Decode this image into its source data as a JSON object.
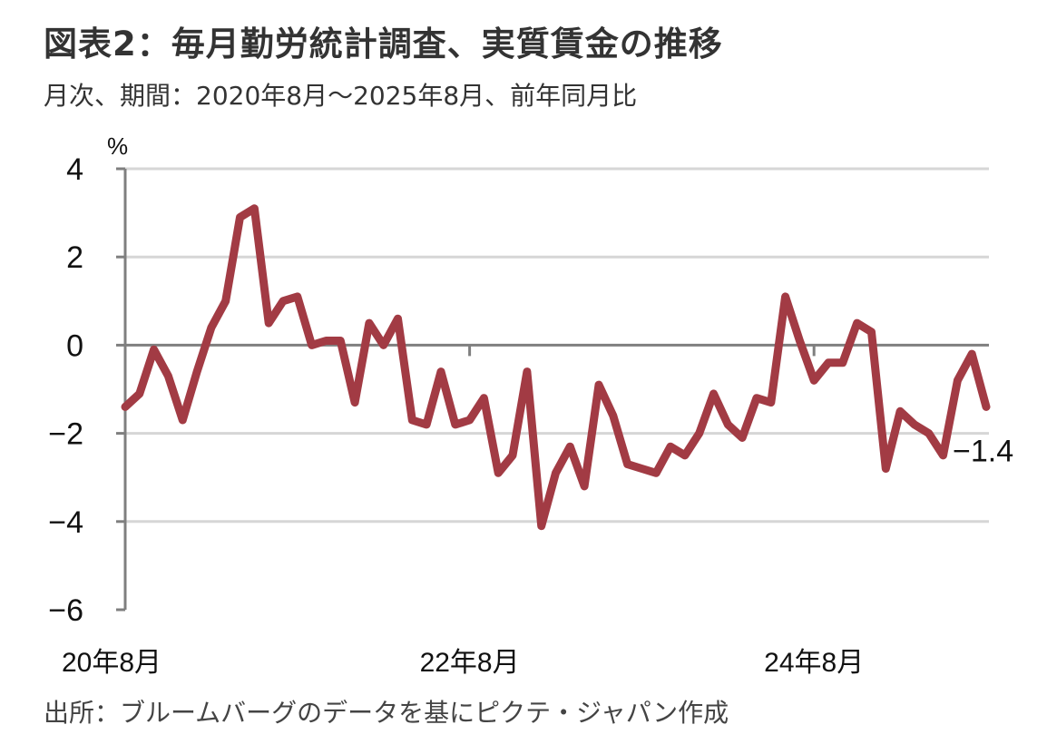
{
  "title": "図表2：毎月勤労統計調査、実質賃金の推移",
  "subtitle": "月次、期間：2020年8月～2025年8月、前年同月比",
  "source": "出所：ブルームバーグのデータを基にピクテ・ジャパン作成",
  "chart_data": {
    "type": "line",
    "title": "図表2：毎月勤労統計調査、実質賃金の推移",
    "ylabel": "%",
    "xlabel": "",
    "ylim": [
      -6,
      4
    ],
    "yticks": [
      4,
      2,
      0,
      -2,
      -4,
      -6
    ],
    "ytick_labels": [
      "4",
      "2",
      "0",
      "−2",
      "−4",
      "−6"
    ],
    "xtick_labels": [
      {
        "index": 0,
        "label": "20年8月"
      },
      {
        "index": 24,
        "label": "22年8月"
      },
      {
        "index": 48,
        "label": "24年8月"
      }
    ],
    "grid": true,
    "series": [
      {
        "name": "実質賃金",
        "color": "#a23b44",
        "start": "2020-08",
        "values": [
          -1.4,
          -1.1,
          -0.1,
          -0.7,
          -1.7,
          -0.6,
          0.4,
          1.0,
          2.9,
          3.1,
          0.5,
          1.0,
          1.1,
          0.0,
          0.1,
          0.1,
          -1.3,
          0.5,
          0.0,
          0.6,
          -1.7,
          -1.8,
          -0.6,
          -1.8,
          -1.7,
          -1.2,
          -2.9,
          -2.5,
          -0.6,
          -4.1,
          -2.9,
          -2.3,
          -3.2,
          -0.9,
          -1.6,
          -2.7,
          -2.8,
          -2.9,
          -2.3,
          -2.5,
          -2.0,
          -1.1,
          -1.8,
          -2.1,
          -1.2,
          -1.3,
          1.1,
          0.1,
          -0.8,
          -0.4,
          -0.4,
          0.5,
          0.3,
          -2.8,
          -1.5,
          -1.8,
          -2.0,
          -2.5,
          -0.8,
          -0.2,
          -1.4
        ]
      }
    ],
    "annotations": [
      {
        "index": 60,
        "label": "−1.4"
      }
    ]
  }
}
